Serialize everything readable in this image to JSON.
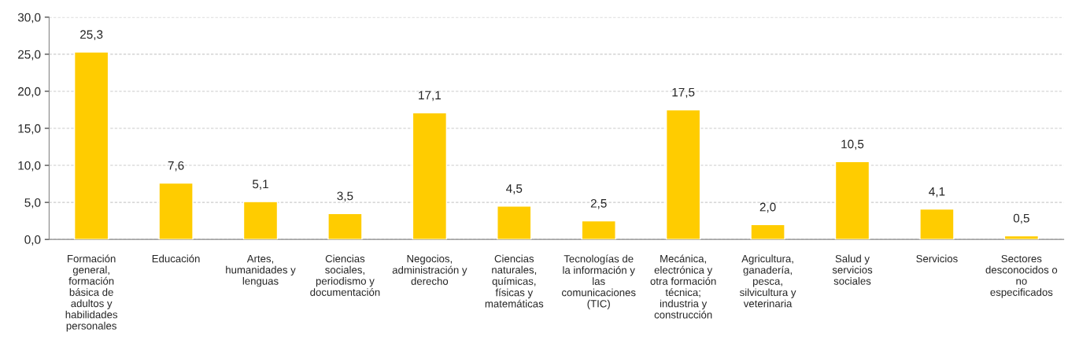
{
  "chart_data": {
    "type": "bar",
    "categories": [
      "Formación\ngeneral,\nformación\nbásica de\nadultos y\nhabilidades\npersonales",
      "Educación",
      "Artes,\nhumanidades y\nlenguas",
      "Ciencias\nsociales,\nperiodismo y\ndocumentación",
      "Negocios,\nadministración y\nderecho",
      "Ciencias\nnaturales,\nquímicas,\nfísicas y\nmatemáticas",
      "Tecnologías de\nla información y\nlas\ncomunicaciones\n(TIC)",
      "Mecánica,\nelectrónica y\notra formación\ntécnica;\nindustria y\nconstrucción",
      "Agricultura,\nganadería,\npesca,\nsilvicultura y\nveterinaria",
      "Salud y\nservicios\nsociales",
      "Servicios",
      "Sectores\ndesconocidos o\nno\nespecificados"
    ],
    "values": [
      25.3,
      7.6,
      5.1,
      3.5,
      17.1,
      4.5,
      2.5,
      17.5,
      2.0,
      10.5,
      4.1,
      0.5
    ],
    "value_labels": [
      "25,3",
      "7,6",
      "5,1",
      "3,5",
      "17,1",
      "4,5",
      "2,5",
      "17,5",
      "2,0",
      "10,5",
      "4,1",
      "0,5"
    ],
    "color": "#ffcc00",
    "ylim": [
      0,
      30
    ],
    "yticks": [
      {
        "value": 0,
        "label": "0,0"
      },
      {
        "value": 5,
        "label": "5,0"
      },
      {
        "value": 10,
        "label": "10,0"
      },
      {
        "value": 15,
        "label": "15,0"
      },
      {
        "value": 20,
        "label": "20,0"
      },
      {
        "value": 25,
        "label": "25,0"
      },
      {
        "value": 30,
        "label": "30,0"
      }
    ],
    "grid": "y"
  }
}
